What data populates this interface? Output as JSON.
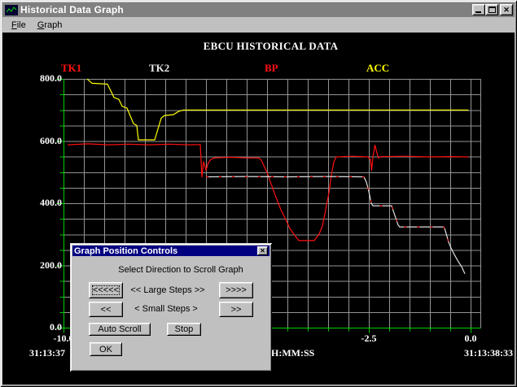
{
  "window": {
    "title": "Historical Data Graph"
  },
  "menu": {
    "items": [
      {
        "label": "File"
      },
      {
        "label": "Graph"
      }
    ]
  },
  "icons": {
    "app_icon": "graph-icon",
    "close_glyph": "✕",
    "minimize": "minimize-icon",
    "maximize": "maximize-icon"
  },
  "colors": {
    "chrome": "#c0c0c0",
    "titlebar_inactive": "#808080",
    "titlebar_active": "#000080",
    "plot_background": "#000000",
    "grid": "#949494",
    "axis_green": "#00cc00",
    "red": "#ff0000",
    "yellow": "#ffff00",
    "white_series": "#e0e0e0"
  },
  "chart_data": {
    "type": "line",
    "title": "EBCU HISTORICAL DATA",
    "grid": true,
    "legend": [
      {
        "name": "TK1",
        "color": "#ff1010"
      },
      {
        "name": "TK2",
        "color": "#e8e8e8"
      },
      {
        "name": "BP",
        "color": "#ff1010"
      },
      {
        "name": "ACC",
        "color": "#ffff00"
      }
    ],
    "x_axis": {
      "unit_label": "H:MM:SS",
      "range": [
        -10,
        0.24
      ],
      "minor_step": 0.5,
      "ticks": [
        {
          "t": -10,
          "label": "-10.0"
        },
        {
          "t": -2.5,
          "label": "-2.5"
        },
        {
          "t": 0,
          "label": "0.0"
        }
      ],
      "start_time": "31:13:37",
      "end_time": "31:13:38:33"
    },
    "y_axis": {
      "range": [
        0,
        800
      ],
      "minor_step": 50,
      "ticks": [
        {
          "v": 800,
          "label": "800.0"
        },
        {
          "v": 600,
          "label": "600.0"
        },
        {
          "v": 400,
          "label": "400.0"
        },
        {
          "v": 200,
          "label": "200.0"
        },
        {
          "v": 0,
          "label": "0.0"
        }
      ]
    },
    "series": [
      {
        "name": "ACC",
        "color": "#ffff00",
        "points": [
          [
            -9.42,
            800
          ],
          [
            -9.38,
            795
          ],
          [
            -9.3,
            786
          ],
          [
            -8.92,
            783
          ],
          [
            -8.76,
            740
          ],
          [
            -8.64,
            734
          ],
          [
            -8.56,
            712
          ],
          [
            -8.44,
            706
          ],
          [
            -8.28,
            656
          ],
          [
            -8.2,
            650
          ],
          [
            -8.16,
            604
          ],
          [
            -7.76,
            604
          ],
          [
            -7.6,
            674
          ],
          [
            -7.52,
            682
          ],
          [
            -7.3,
            685
          ],
          [
            -7.18,
            695
          ],
          [
            -7.06,
            700
          ],
          [
            -0.05,
            700
          ]
        ]
      },
      {
        "name": "TK1",
        "color": "#ff1010",
        "points": [
          [
            -9.9,
            588
          ],
          [
            -9.4,
            591
          ],
          [
            -8.9,
            588
          ],
          [
            -8.4,
            590
          ],
          [
            -7.9,
            588
          ],
          [
            -7.4,
            590
          ],
          [
            -6.9,
            588
          ],
          [
            -6.64,
            589
          ],
          [
            -6.6,
            484
          ],
          [
            -6.56,
            534
          ],
          [
            -6.5,
            507
          ],
          [
            -6.44,
            531
          ],
          [
            -6.38,
            541
          ],
          [
            -6.3,
            546
          ],
          [
            -5.9,
            548
          ],
          [
            -5.5,
            546
          ],
          [
            -5.2,
            546
          ],
          [
            -5.14,
            538
          ],
          [
            -5.0,
            499
          ],
          [
            -4.8,
            426
          ],
          [
            -4.66,
            379
          ],
          [
            -4.56,
            353
          ],
          [
            -4.44,
            319
          ],
          [
            -4.3,
            293
          ],
          [
            -4.22,
            280
          ],
          [
            -3.84,
            280
          ],
          [
            -3.72,
            301
          ],
          [
            -3.64,
            327
          ],
          [
            -3.56,
            379
          ],
          [
            -3.48,
            434
          ],
          [
            -3.42,
            491
          ],
          [
            -3.36,
            533
          ],
          [
            -3.3,
            549
          ],
          [
            -2.9,
            551
          ],
          [
            -2.52,
            549
          ],
          [
            -2.46,
            540
          ],
          [
            -2.43,
            505
          ],
          [
            -2.4,
            549
          ],
          [
            -2.37,
            570
          ],
          [
            -2.35,
            588
          ],
          [
            -2.31,
            566
          ],
          [
            -2.27,
            546
          ],
          [
            -2.2,
            550
          ],
          [
            -1.6,
            551
          ],
          [
            -1.0,
            549
          ],
          [
            -0.5,
            550
          ],
          [
            -0.05,
            549
          ]
        ]
      },
      {
        "name": "TK2",
        "color": "#e0e0e0",
        "points": [
          [
            -6.5,
            485
          ],
          [
            -5.5,
            486
          ],
          [
            -4.5,
            485
          ],
          [
            -3.5,
            486
          ],
          [
            -2.62,
            485
          ],
          [
            -2.56,
            468
          ],
          [
            -2.5,
            438
          ],
          [
            -2.44,
            400
          ],
          [
            -2.4,
            392
          ],
          [
            -1.94,
            392
          ],
          [
            -1.88,
            368
          ],
          [
            -1.78,
            330
          ],
          [
            -1.74,
            324
          ],
          [
            -0.66,
            324
          ],
          [
            -0.63,
            316
          ],
          [
            -0.54,
            275
          ],
          [
            -0.48,
            256
          ],
          [
            -0.4,
            235
          ],
          [
            -0.3,
            212
          ],
          [
            -0.22,
            196
          ],
          [
            -0.14,
            173
          ]
        ]
      },
      {
        "name": "BP",
        "color": "#ff1010",
        "dash": [
          3,
          13
        ],
        "points": [
          [
            -6.5,
            485
          ],
          [
            -2.62,
            485
          ],
          [
            -2.56,
            468
          ],
          [
            -2.5,
            438
          ],
          [
            -2.44,
            400
          ],
          [
            -2.4,
            392
          ],
          [
            -1.94,
            392
          ],
          [
            -1.88,
            368
          ],
          [
            -1.78,
            330
          ],
          [
            -1.74,
            324
          ],
          [
            -0.66,
            324
          ],
          [
            -0.63,
            316
          ],
          [
            -0.54,
            275
          ],
          [
            -0.48,
            256
          ]
        ]
      }
    ]
  },
  "dialog": {
    "title": "Graph Position Controls",
    "instruction": "Select Direction to Scroll Graph",
    "labels": {
      "large": "<< Large Steps >>",
      "small": "< Small Steps >"
    },
    "buttons": {
      "large_left": "<<<<<",
      "large_right": ">>>>",
      "small_left": "<<",
      "small_right": ">>",
      "auto_scroll": "Auto Scroll",
      "stop": "Stop",
      "ok": "OK"
    }
  }
}
